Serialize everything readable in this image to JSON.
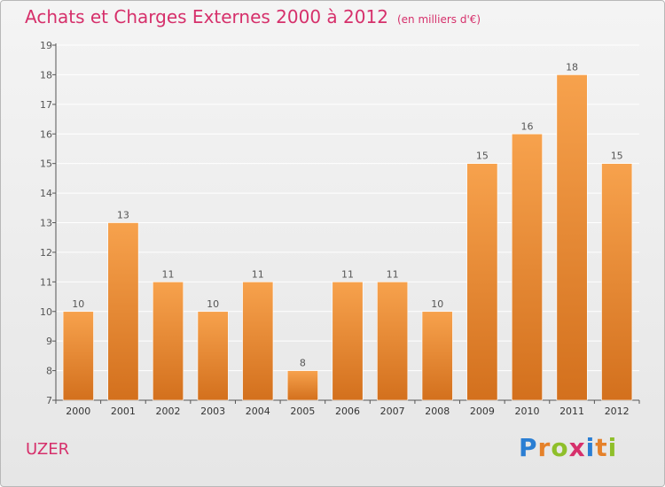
{
  "header": {
    "title": "Achats et Charges Externes 2000 à 2012",
    "unit": "(en milliers d'€)"
  },
  "footer": {
    "location": "UZER",
    "brand": "Proxiti"
  },
  "colors": {
    "accent": "#d6306b",
    "bar_top": "#f7a24d",
    "bar_bottom": "#d3701d",
    "axis": "#555555",
    "grid": "#ffffff"
  },
  "chart_data": {
    "type": "bar",
    "title": "Achats et Charges Externes 2000 à 2012",
    "subtitle": "(en milliers d'€)",
    "xlabel": "",
    "ylabel": "",
    "categories": [
      "2000",
      "2001",
      "2002",
      "2003",
      "2004",
      "2005",
      "2006",
      "2007",
      "2008",
      "2009",
      "2010",
      "2011",
      "2012"
    ],
    "values": [
      10,
      13,
      11,
      10,
      11,
      8,
      11,
      11,
      10,
      15,
      16,
      18,
      15
    ],
    "ylim": [
      7,
      19
    ],
    "yticks": [
      7,
      8,
      9,
      10,
      11,
      12,
      13,
      14,
      15,
      16,
      17,
      18,
      19
    ],
    "grid": true,
    "data_labels": true
  }
}
